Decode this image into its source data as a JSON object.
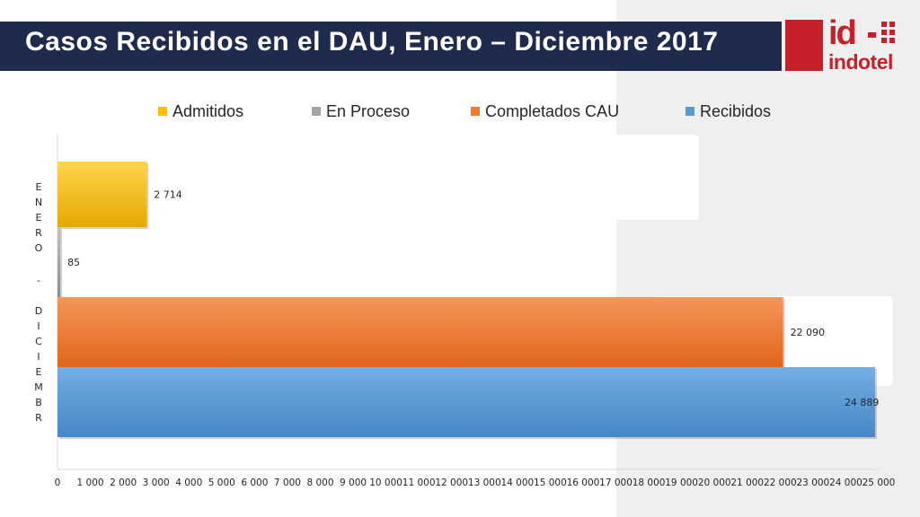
{
  "title": "Casos Recibidos en el DAU, Enero – Diciembre 2017",
  "logo": {
    "id_text": "id",
    "name_text": "indotel"
  },
  "colors": {
    "title_bar": "#1f2b4d",
    "brand_red": "#c6202b"
  },
  "chart_data": {
    "type": "bar",
    "orientation": "horizontal",
    "category_label_letters": [
      "E",
      "N",
      "E",
      "R",
      "O",
      "-",
      "D",
      "I",
      "C",
      "I",
      "E",
      "M",
      "B",
      "R"
    ],
    "series": [
      {
        "name": "Admitidos",
        "value": 2714,
        "label": "2 714",
        "color": "#ffc000"
      },
      {
        "name": "En Proceso",
        "value": 85,
        "label": "85",
        "color": "#a5a5a5"
      },
      {
        "name": "Completados CAU",
        "value": 22090,
        "label": "22 090",
        "color": "#ed7d31"
      },
      {
        "name": "Recibidos",
        "value": 24889,
        "label": "24 889",
        "color": "#5b9bd5"
      }
    ],
    "legend_order": [
      "Admitidos",
      "En Proceso",
      "Completados CAU",
      "Recibidos"
    ],
    "legend_position": "top",
    "xlim": [
      0,
      25000
    ],
    "x_ticks": [
      "0",
      "1 000",
      "2 000",
      "3 000",
      "4 000",
      "5 000",
      "6 000",
      "7 000",
      "8 000",
      "9 000",
      "10 000",
      "11 000",
      "12 000",
      "13 000",
      "14 000",
      "15 000",
      "16 000",
      "17 000",
      "18 000",
      "19 000",
      "20 000",
      "21 000",
      "22 000",
      "23 000",
      "24 000",
      "25 000"
    ],
    "grid": false
  }
}
